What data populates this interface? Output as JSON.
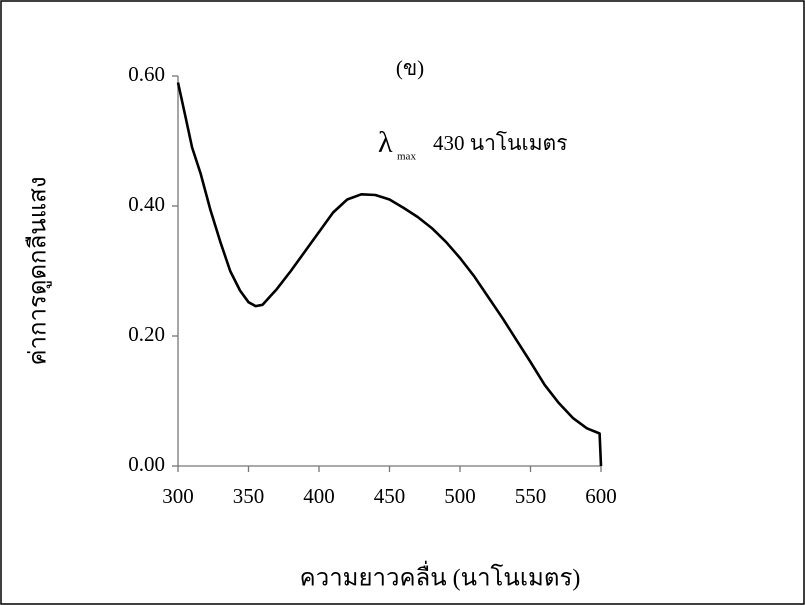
{
  "chart_data": {
    "type": "line",
    "annotation_label": "(ข)",
    "annotation_symbol": "λ",
    "annotation_subscript": "max",
    "annotation_text": "430 นาโนเมตร",
    "x_label": "ความยาวคลื่น (นาโนเมตร)",
    "y_label": "ค่าการดูดกลืนแสง",
    "x": [
      300,
      305,
      310,
      316,
      323,
      330,
      337,
      344,
      350,
      355,
      360,
      365,
      370,
      380,
      390,
      400,
      410,
      420,
      430,
      440,
      450,
      460,
      470,
      480,
      490,
      500,
      510,
      520,
      530,
      540,
      550,
      560,
      570,
      580,
      590,
      599,
      600
    ],
    "values": [
      0.59,
      0.54,
      0.49,
      0.45,
      0.394,
      0.345,
      0.3,
      0.27,
      0.252,
      0.246,
      0.248,
      0.26,
      0.272,
      0.3,
      0.33,
      0.36,
      0.39,
      0.41,
      0.418,
      0.417,
      0.41,
      0.397,
      0.383,
      0.366,
      0.345,
      0.32,
      0.292,
      0.26,
      0.228,
      0.194,
      0.16,
      0.125,
      0.097,
      0.074,
      0.058,
      0.05,
      0.0
    ],
    "color": "#000000",
    "xlim": [
      300,
      600
    ],
    "xticks": [
      300,
      350,
      400,
      450,
      500,
      550,
      600
    ],
    "ylim": [
      0,
      0.6
    ],
    "yticks": [
      {
        "value": 0,
        "label": "0.00"
      },
      {
        "value": 0.2,
        "label": "0.20"
      },
      {
        "value": 0.4,
        "label": "0.40"
      },
      {
        "value": 0.6,
        "label": "0.60"
      }
    ]
  }
}
